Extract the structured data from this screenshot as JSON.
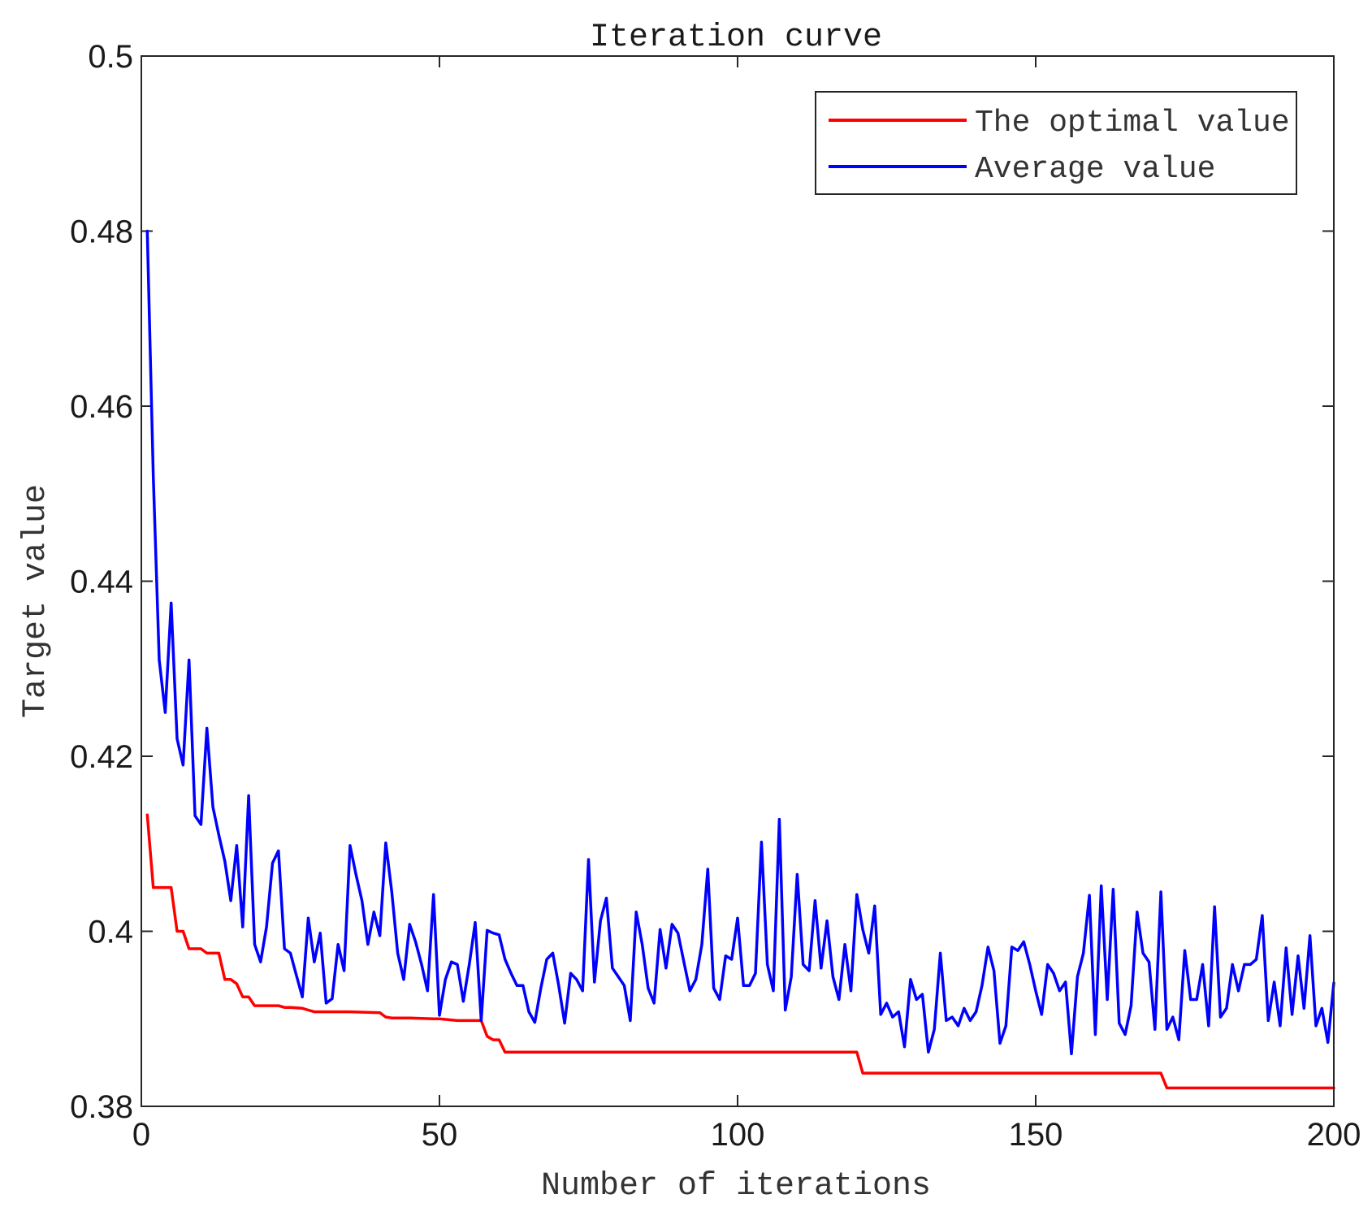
{
  "chart_data": {
    "type": "line",
    "title": "Iteration curve",
    "xlabel": "Number of iterations",
    "ylabel": "Target value",
    "xlim": [
      0,
      200
    ],
    "ylim": [
      0.38,
      0.5
    ],
    "xticks": [
      0,
      50,
      100,
      150,
      200
    ],
    "xtick_labels": [
      "0",
      "50",
      "100",
      "150",
      "200"
    ],
    "yticks": [
      0.38,
      0.4,
      0.42,
      0.44,
      0.46,
      0.48,
      0.5
    ],
    "ytick_labels": [
      "0.38",
      "0.4",
      "0.42",
      "0.44",
      "0.46",
      "0.48",
      "0.5"
    ],
    "legend_position": "top-right",
    "series": [
      {
        "name": "The optimal value",
        "color": "#ff0000",
        "x": [
          1,
          2,
          3,
          4,
          5,
          6,
          7,
          8,
          9,
          10,
          11,
          12,
          13,
          14,
          15,
          16,
          17,
          18,
          19,
          20,
          23,
          24,
          25,
          27,
          28,
          29,
          30,
          31,
          35,
          40,
          41,
          42,
          45,
          49,
          50,
          53,
          56,
          57,
          58,
          59,
          60,
          61,
          62,
          120,
          121,
          122,
          171,
          172,
          173,
          200
        ],
        "y": [
          0.4133,
          0.405,
          0.405,
          0.405,
          0.405,
          0.4,
          0.4,
          0.398,
          0.398,
          0.398,
          0.3975,
          0.3975,
          0.3975,
          0.3945,
          0.3945,
          0.394,
          0.3925,
          0.3925,
          0.3915,
          0.3915,
          0.3915,
          0.3913,
          0.3913,
          0.3912,
          0.391,
          0.3908,
          0.3908,
          0.3908,
          0.3908,
          0.3907,
          0.3902,
          0.3901,
          0.3901,
          0.39,
          0.39,
          0.3898,
          0.3898,
          0.3898,
          0.388,
          0.3876,
          0.3876,
          0.3862,
          0.3862,
          0.3862,
          0.3838,
          0.3838,
          0.3838,
          0.3821,
          0.3821,
          0.3821
        ]
      },
      {
        "name": "Average value",
        "color": "#0000ff",
        "x": [
          1,
          2,
          3,
          4,
          5,
          6,
          7,
          8,
          9,
          10,
          11,
          12,
          13,
          14,
          15,
          16,
          17,
          18,
          19,
          20,
          21,
          22,
          23,
          24,
          25,
          26,
          27,
          28,
          29,
          30,
          31,
          32,
          33,
          34,
          35,
          36,
          37,
          38,
          39,
          40,
          41,
          42,
          43,
          44,
          45,
          46,
          47,
          48,
          49,
          50,
          51,
          52,
          53,
          54,
          55,
          56,
          57,
          58,
          59,
          60,
          61,
          62,
          63,
          64,
          65,
          66,
          67,
          68,
          69,
          70,
          71,
          72,
          73,
          74,
          75,
          76,
          77,
          78,
          79,
          80,
          81,
          82,
          83,
          84,
          85,
          86,
          87,
          88,
          89,
          90,
          91,
          92,
          93,
          94,
          95,
          96,
          97,
          98,
          99,
          100,
          101,
          102,
          103,
          104,
          105,
          106,
          107,
          108,
          109,
          110,
          111,
          112,
          113,
          114,
          115,
          116,
          117,
          118,
          119,
          120,
          121,
          122,
          123,
          124,
          125,
          126,
          127,
          128,
          129,
          130,
          131,
          132,
          133,
          134,
          135,
          136,
          137,
          138,
          139,
          140,
          141,
          142,
          143,
          144,
          145,
          146,
          147,
          148,
          149,
          150,
          151,
          152,
          153,
          154,
          155,
          156,
          157,
          158,
          159,
          160,
          161,
          162,
          163,
          164,
          165,
          166,
          167,
          168,
          169,
          170,
          171,
          172,
          173,
          174,
          175,
          176,
          177,
          178,
          179,
          180,
          181,
          182,
          183,
          184,
          185,
          186,
          187,
          188,
          189,
          190,
          191,
          192,
          193,
          194,
          195,
          196,
          197,
          198,
          199,
          200
        ],
        "y": [
          0.48,
          0.452,
          0.431,
          0.425,
          0.4375,
          0.422,
          0.419,
          0.431,
          0.4132,
          0.4122,
          0.4232,
          0.4142,
          0.411,
          0.408,
          0.4035,
          0.4098,
          0.4005,
          0.4155,
          0.3985,
          0.3965,
          0.4005,
          0.4078,
          0.4092,
          0.398,
          0.3975,
          0.395,
          0.3925,
          0.4015,
          0.3965,
          0.3998,
          0.3918,
          0.3923,
          0.3985,
          0.3955,
          0.4098,
          0.4065,
          0.4035,
          0.3985,
          0.4022,
          0.3995,
          0.4101,
          0.4045,
          0.3975,
          0.3945,
          0.4008,
          0.3988,
          0.3962,
          0.3932,
          0.4042,
          0.3904,
          0.3945,
          0.3965,
          0.3962,
          0.392,
          0.3962,
          0.401,
          0.3898,
          0.4001,
          0.3998,
          0.3996,
          0.3968,
          0.3952,
          0.3938,
          0.3938,
          0.3908,
          0.3896,
          0.3935,
          0.3968,
          0.3975,
          0.3938,
          0.3895,
          0.3952,
          0.3945,
          0.3932,
          0.4082,
          0.3942,
          0.4012,
          0.4038,
          0.3958,
          0.3948,
          0.3938,
          0.3898,
          0.4022,
          0.3985,
          0.3935,
          0.3918,
          0.4002,
          0.3958,
          0.4008,
          0.3998,
          0.3965,
          0.3932,
          0.3945,
          0.3985,
          0.4071,
          0.3935,
          0.3922,
          0.3972,
          0.3968,
          0.4015,
          0.3938,
          0.3938,
          0.3952,
          0.4102,
          0.3962,
          0.3932,
          0.4128,
          0.391,
          0.3948,
          0.4065,
          0.3962,
          0.3955,
          0.4035,
          0.3958,
          0.4012,
          0.3948,
          0.3922,
          0.3985,
          0.3932,
          0.4042,
          0.4002,
          0.3975,
          0.4029,
          0.3905,
          0.3918,
          0.3902,
          0.3908,
          0.3868,
          0.3945,
          0.3922,
          0.3928,
          0.3862,
          0.3888,
          0.3975,
          0.3898,
          0.3902,
          0.3892,
          0.3912,
          0.3898,
          0.3908,
          0.3938,
          0.3982,
          0.3955,
          0.3872,
          0.3892,
          0.3982,
          0.3978,
          0.3988,
          0.3962,
          0.3932,
          0.3905,
          0.3962,
          0.3952,
          0.3932,
          0.3942,
          0.386,
          0.3948,
          0.3975,
          0.4041,
          0.3882,
          0.4052,
          0.3922,
          0.4048,
          0.3895,
          0.3882,
          0.3915,
          0.4022,
          0.3975,
          0.3965,
          0.3888,
          0.4045,
          0.3888,
          0.3902,
          0.3876,
          0.3978,
          0.3922,
          0.3922,
          0.3962,
          0.3892,
          0.4028,
          0.3902,
          0.3912,
          0.3962,
          0.3932,
          0.3962,
          0.3962,
          0.3968,
          0.4018,
          0.3898,
          0.3942,
          0.3892,
          0.3981,
          0.3905,
          0.3972,
          0.3912,
          0.3995,
          0.3892,
          0.3912,
          0.3873,
          0.3941
        ]
      }
    ]
  }
}
